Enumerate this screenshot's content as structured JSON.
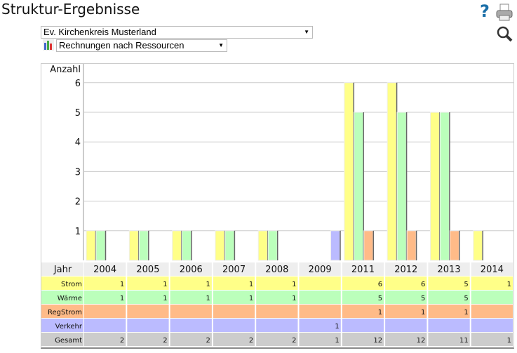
{
  "header": {
    "title": "Struktur-Ergebnisse",
    "help": "?"
  },
  "filters": {
    "organization": "Ev. Kirchenkreis Musterland",
    "report": "Rechnungen nach Ressourcen"
  },
  "colors": {
    "Strom": "#ffff88",
    "Wärme": "#bbffbb",
    "RegStrom": "#ffbb88",
    "Verkehr": "#bbbbff",
    "Gesamt": "#cccccc",
    "header": "#eeeeee"
  },
  "chart_data": {
    "type": "bar",
    "ylabel": "Anzahl",
    "xlabel": "Jahr",
    "ylim": [
      0,
      6.2
    ],
    "yticks": [
      1,
      2,
      3,
      4,
      5,
      6
    ],
    "categories": [
      "2004",
      "2005",
      "2006",
      "2007",
      "2008",
      "2009",
      "2011",
      "2012",
      "2013",
      "2014"
    ],
    "series": [
      {
        "name": "Strom",
        "values": [
          1,
          1,
          1,
          1,
          1,
          null,
          6,
          6,
          5,
          1
        ]
      },
      {
        "name": "Wärme",
        "values": [
          1,
          1,
          1,
          1,
          1,
          null,
          5,
          5,
          5,
          null
        ]
      },
      {
        "name": "RegStrom",
        "values": [
          null,
          null,
          null,
          null,
          null,
          null,
          1,
          1,
          1,
          null
        ]
      },
      {
        "name": "Verkehr",
        "values": [
          null,
          null,
          null,
          null,
          null,
          1,
          null,
          null,
          null,
          null
        ]
      }
    ],
    "totals": {
      "name": "Gesamt",
      "values": [
        2,
        2,
        2,
        2,
        2,
        1,
        12,
        12,
        11,
        1
      ]
    }
  }
}
